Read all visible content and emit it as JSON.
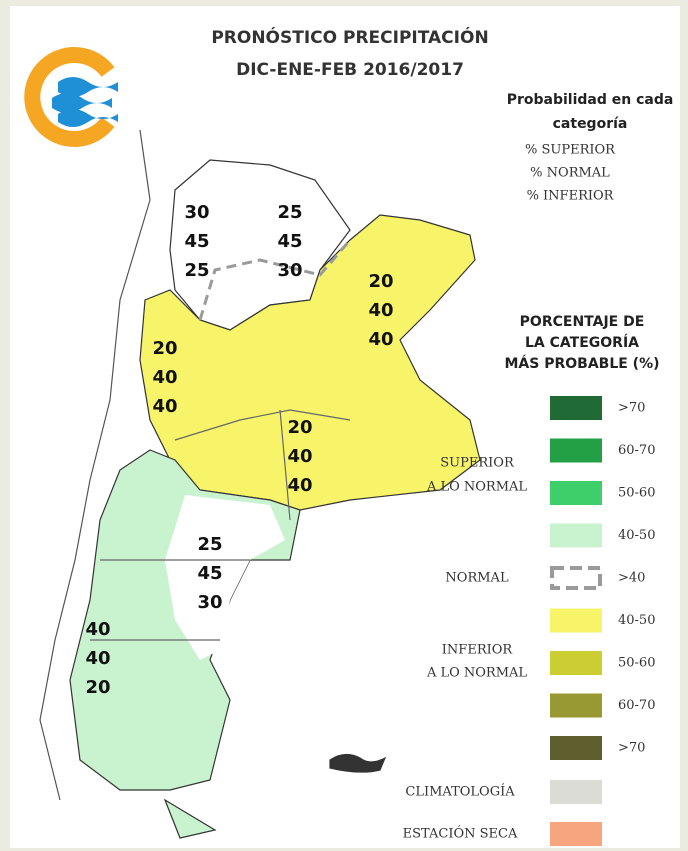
{
  "header": {
    "title": [
      "PRONÓSTICO PRECIPITACIÓN",
      "DIC-ENE-FEB 2016/2017"
    ]
  },
  "probability_legend": {
    "title": [
      "Probabilidad en cada",
      "categoría"
    ],
    "lines": [
      "% SUPERIOR",
      "% NORMAL",
      "% INFERIOR"
    ]
  },
  "scale_title": [
    "PORCENTAJE DE",
    "LA CATEGORÍA",
    "MÁS PROBABLE (%)"
  ],
  "groups": [
    {
      "label": [
        "SUPERIOR",
        "A LO NORMAL"
      ]
    },
    {
      "label": [
        "NORMAL"
      ]
    },
    {
      "label": [
        "INFERIOR",
        "A LO NORMAL"
      ]
    }
  ],
  "scale": [
    {
      "label": ">70",
      "color": "#1f6a35"
    },
    {
      "label": "60-70",
      "color": "#23a045"
    },
    {
      "label": "50-60",
      "color": "#3ecf6a"
    },
    {
      "label": "40-50",
      "color": "#c9f3cf"
    },
    {
      "label": ">40",
      "color": "#9a9a9a",
      "dashed": true
    },
    {
      "label": "40-50",
      "color": "#f7f46a"
    },
    {
      "label": "50-60",
      "color": "#cccc33"
    },
    {
      "label": "60-70",
      "color": "#999933"
    },
    {
      "label": ">70",
      "color": "#5e5e2e"
    }
  ],
  "other": [
    {
      "label": "CLIMATOLOGÍA",
      "color": "#dcdcd6"
    },
    {
      "label": "ESTACIÓN SECA",
      "color": "#f6a57e"
    }
  ],
  "regions": [
    {
      "values": [
        30,
        45,
        25
      ]
    },
    {
      "values": [
        25,
        45,
        30
      ]
    },
    {
      "values": [
        20,
        40,
        40
      ]
    },
    {
      "values": [
        20,
        40,
        40
      ]
    },
    {
      "values": [
        20,
        40,
        40
      ]
    },
    {
      "values": [
        25,
        45,
        30
      ]
    },
    {
      "values": [
        40,
        40,
        20
      ]
    }
  ]
}
